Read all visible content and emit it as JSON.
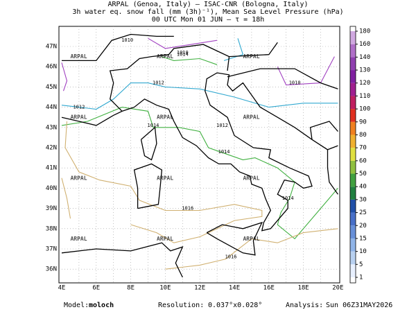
{
  "header": {
    "line1": "ARPAL (Genoa, Italy)  —  ISAC-CNR (Bologna, Italy)",
    "line2": "3h water eq. snow fall (mm (3h)⁻¹), Mean Sea Level Pressure (hPa)",
    "line3": "00 UTC Mon 01 JUN  —  τ = 18h"
  },
  "map": {
    "lon_labels": [
      "4E",
      "6E",
      "8E",
      "10E",
      "12E",
      "14E",
      "16E",
      "18E",
      "20E"
    ],
    "lat_labels": [
      "47N",
      "46N",
      "45N",
      "44N",
      "43N",
      "42N",
      "41N",
      "40N",
      "39N",
      "38N",
      "37N",
      "36N"
    ],
    "watermark": "ARPAL",
    "isobars": [
      {
        "label": "1010",
        "color": "#a040c0"
      },
      {
        "label": "1012",
        "color": "#30a8d0"
      },
      {
        "label": "1014",
        "color": "#40b040"
      },
      {
        "label": "1016",
        "color": "#d0b070"
      }
    ]
  },
  "colorbar": {
    "levels": [
      "1",
      "5",
      "10",
      "15",
      "20",
      "25",
      "30",
      "40",
      "50",
      "60",
      "70",
      "80",
      "90",
      "100",
      "110",
      "120",
      "130",
      "140",
      "160",
      "180"
    ],
    "colors": [
      "#e8f0ff",
      "#b8d0f0",
      "#90b4e8",
      "#6890d8",
      "#4870c8",
      "#2050a8",
      "#208040",
      "#40a040",
      "#90c040",
      "#e0e040",
      "#f0b030",
      "#f08020",
      "#e03020",
      "#c02060",
      "#a02090",
      "#8020a0",
      "#9040b0",
      "#b070c8",
      "#d0a8e0"
    ]
  },
  "footer": {
    "model_label": "Model:",
    "model": "moloch",
    "resolution_label": "Resolution:",
    "resolution": "0.037°x0.028°",
    "analysis_label": "Analysis:",
    "analysis": "Sun 06Z31MAY2026"
  }
}
